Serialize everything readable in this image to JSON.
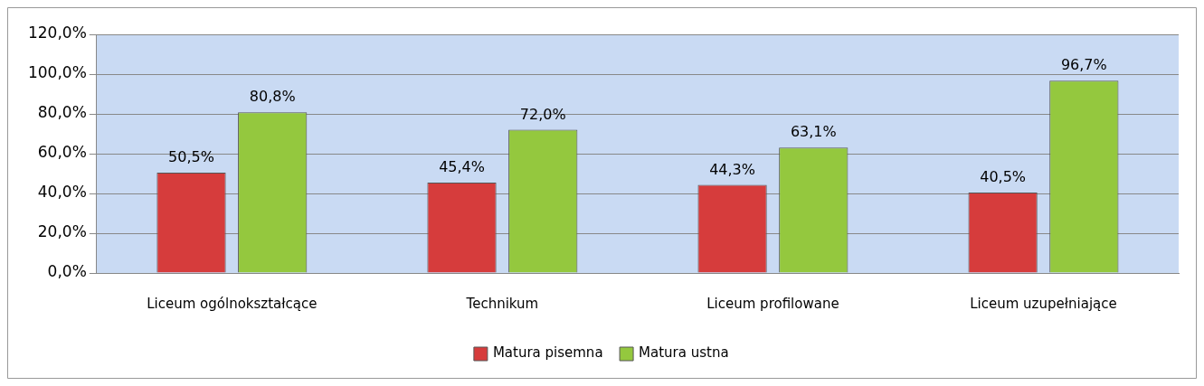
{
  "chart_data": {
    "type": "bar",
    "categories": [
      "Liceum ogólnokształcące",
      "Technikum",
      "Liceum profilowane",
      "Liceum uzupełniające"
    ],
    "series": [
      {
        "name": "Matura pisemna",
        "color": "#d63c3c",
        "values": [
          50.5,
          45.4,
          44.3,
          40.5
        ],
        "value_labels": [
          "50,5%",
          "45,4%",
          "44,3%",
          "40,5%"
        ]
      },
      {
        "name": "Matura ustna",
        "color": "#94c83e",
        "values": [
          80.8,
          72.0,
          63.1,
          96.7
        ],
        "value_labels": [
          "80,8%",
          "72,0%",
          "63,1%",
          "96,7%"
        ]
      }
    ],
    "ylim": [
      0,
      120
    ],
    "yticks": [
      {
        "value": 0,
        "label": "0,0%"
      },
      {
        "value": 20,
        "label": "20,0%"
      },
      {
        "value": 40,
        "label": "40,0%"
      },
      {
        "value": 60,
        "label": "60,0%"
      },
      {
        "value": 80,
        "label": "80,0%"
      },
      {
        "value": 100,
        "label": "100,0%"
      },
      {
        "value": 120,
        "label": "120,0%"
      }
    ],
    "grid": "y",
    "legend": "bottom"
  }
}
